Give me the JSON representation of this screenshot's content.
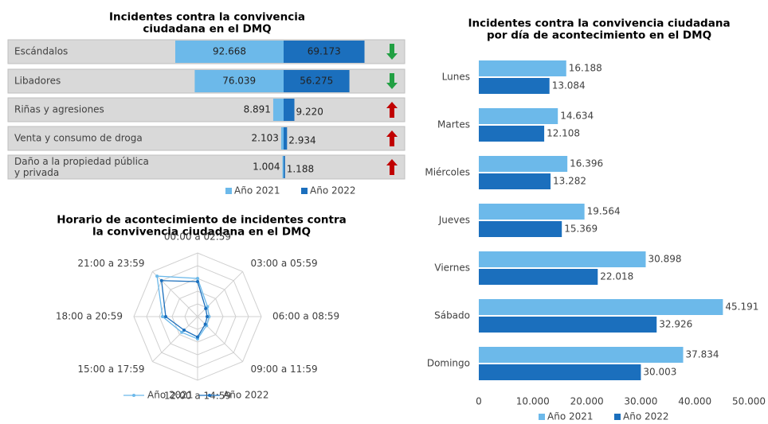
{
  "chart_data": [
    {
      "type": "diverging_bar",
      "title": "Incidentes contra la convivencia\nciudadana en el DMQ",
      "categories": [
        "Escándalos",
        "Libadores",
        "Riñas y agresiones",
        "Venta y consumo de droga",
        "Daño a la propiedad pública\ny privada"
      ],
      "series": [
        {
          "name": "Año 2021",
          "color": "#6cb9ea",
          "values": [
            92668,
            76039,
            8891,
            2103,
            1004
          ],
          "value_labels": [
            "92.668",
            "76.039",
            "8.891",
            "2.103",
            "1.004"
          ]
        },
        {
          "name": "Año 2022",
          "color": "#1b6fbd",
          "values": [
            69173,
            56275,
            9220,
            2934,
            1188
          ],
          "value_labels": [
            "69.173",
            "56.275",
            "9.220",
            "2.934",
            "1.188"
          ]
        }
      ],
      "trend": [
        "down",
        "down",
        "up",
        "up",
        "up"
      ]
    },
    {
      "type": "radar",
      "title": "Horario de acontecimiento de incidentes contra\nla convivencia ciudadana en el DMQ",
      "categories": [
        "00:00 a 02:59",
        "03:00 a 05:59",
        "06:00 a 08:59",
        "09:00 a 11:59",
        "12:00 a 14:59",
        "15:00 a 17:59",
        "18:00 a 20:59",
        "21:00 a 23:59"
      ],
      "rlim": [
        0,
        100
      ],
      "series": [
        {
          "name": "Año 2021",
          "color": "#6cb9ea",
          "values": [
            60,
            22,
            18,
            20,
            35,
            35,
            55,
            90
          ]
        },
        {
          "name": "Año 2022",
          "color": "#1b6fbd",
          "values": [
            55,
            18,
            15,
            17,
            32,
            30,
            50,
            80
          ]
        }
      ]
    },
    {
      "type": "hbar",
      "title": "Incidentes contra la convivencia ciudadana\npor día de acontecimiento en el DMQ",
      "categories": [
        "Lunes",
        "Martes",
        "Miércoles",
        "Jueves",
        "Viernes",
        "Sábado",
        "Domingo"
      ],
      "xlim": [
        0,
        50000
      ],
      "xticks": [
        0,
        {
          "value": 10000,
          "label": "10.000"
        },
        {
          "value": 20000,
          "label": "20.000"
        },
        {
          "value": 30000,
          "label": "30.000"
        },
        {
          "value": 40000,
          "label": "40.000"
        },
        {
          "value": 50000,
          "label": "50.000"
        }
      ],
      "series": [
        {
          "name": "Año 2021",
          "color": "#6cb9ea",
          "values": [
            16188,
            14634,
            16396,
            19564,
            30898,
            45191,
            37834
          ],
          "value_labels": [
            "16.188",
            "14.634",
            "16.396",
            "19.564",
            "30.898",
            "45.191",
            "37.834"
          ]
        },
        {
          "name": "Año 2022",
          "color": "#1b6fbd",
          "values": [
            13084,
            12108,
            13282,
            15369,
            22018,
            32926,
            30003
          ],
          "value_labels": [
            "13.084",
            "12.108",
            "13.282",
            "15.369",
            "22.018",
            "32.926",
            "30.003"
          ]
        }
      ]
    }
  ]
}
